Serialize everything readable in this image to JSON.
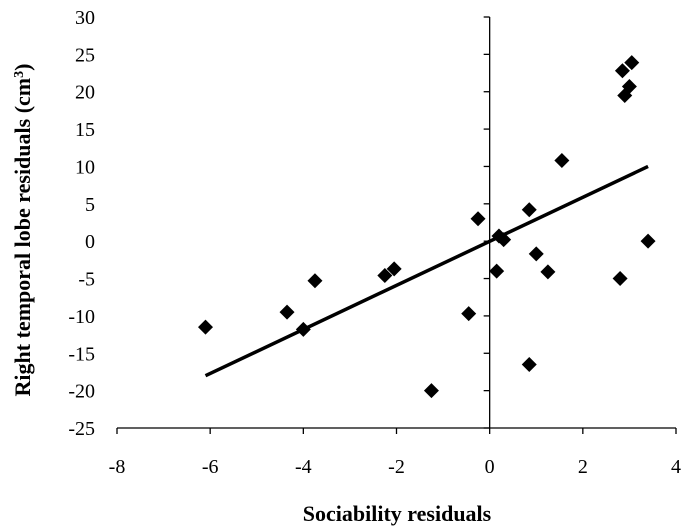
{
  "chart_data": {
    "type": "scatter",
    "xlabel": "Sociability residuals",
    "ylabel": "Right temporal lobe residuals (cm",
    "ylabel_sup": "3",
    "ylabel_close": ")",
    "xlim": [
      -8,
      4
    ],
    "ylim": [
      -25,
      30
    ],
    "x_ticks": [
      -8,
      -6,
      -4,
      -2,
      0,
      2,
      4
    ],
    "y_ticks": [
      -25,
      -20,
      -15,
      -10,
      -5,
      0,
      5,
      10,
      15,
      20,
      25,
      30
    ],
    "grid": false,
    "legend": "none",
    "marker": "diamond",
    "marker_color": "#000000",
    "points": [
      {
        "x": -6.1,
        "y": -11.5
      },
      {
        "x": -4.35,
        "y": -9.5
      },
      {
        "x": -4.0,
        "y": -11.8
      },
      {
        "x": -3.75,
        "y": -5.3
      },
      {
        "x": -2.25,
        "y": -4.6
      },
      {
        "x": -2.05,
        "y": -3.7
      },
      {
        "x": -1.25,
        "y": -20.0
      },
      {
        "x": -0.45,
        "y": -9.7
      },
      {
        "x": -0.25,
        "y": 3.0
      },
      {
        "x": 0.15,
        "y": -4.0
      },
      {
        "x": 0.2,
        "y": 0.7
      },
      {
        "x": 0.3,
        "y": 0.2
      },
      {
        "x": 0.85,
        "y": -16.5
      },
      {
        "x": 0.85,
        "y": 4.2
      },
      {
        "x": 1.0,
        "y": -1.7
      },
      {
        "x": 1.25,
        "y": -4.1
      },
      {
        "x": 1.55,
        "y": 10.8
      },
      {
        "x": 2.8,
        "y": -5.0
      },
      {
        "x": 2.85,
        "y": 22.8
      },
      {
        "x": 2.9,
        "y": 19.5
      },
      {
        "x": 3.0,
        "y": 20.7
      },
      {
        "x": 3.05,
        "y": 23.9
      },
      {
        "x": 3.4,
        "y": 0.0
      }
    ],
    "trendline": {
      "x": [
        -6.1,
        3.4
      ],
      "y": [
        -18.0,
        10.0
      ]
    }
  }
}
